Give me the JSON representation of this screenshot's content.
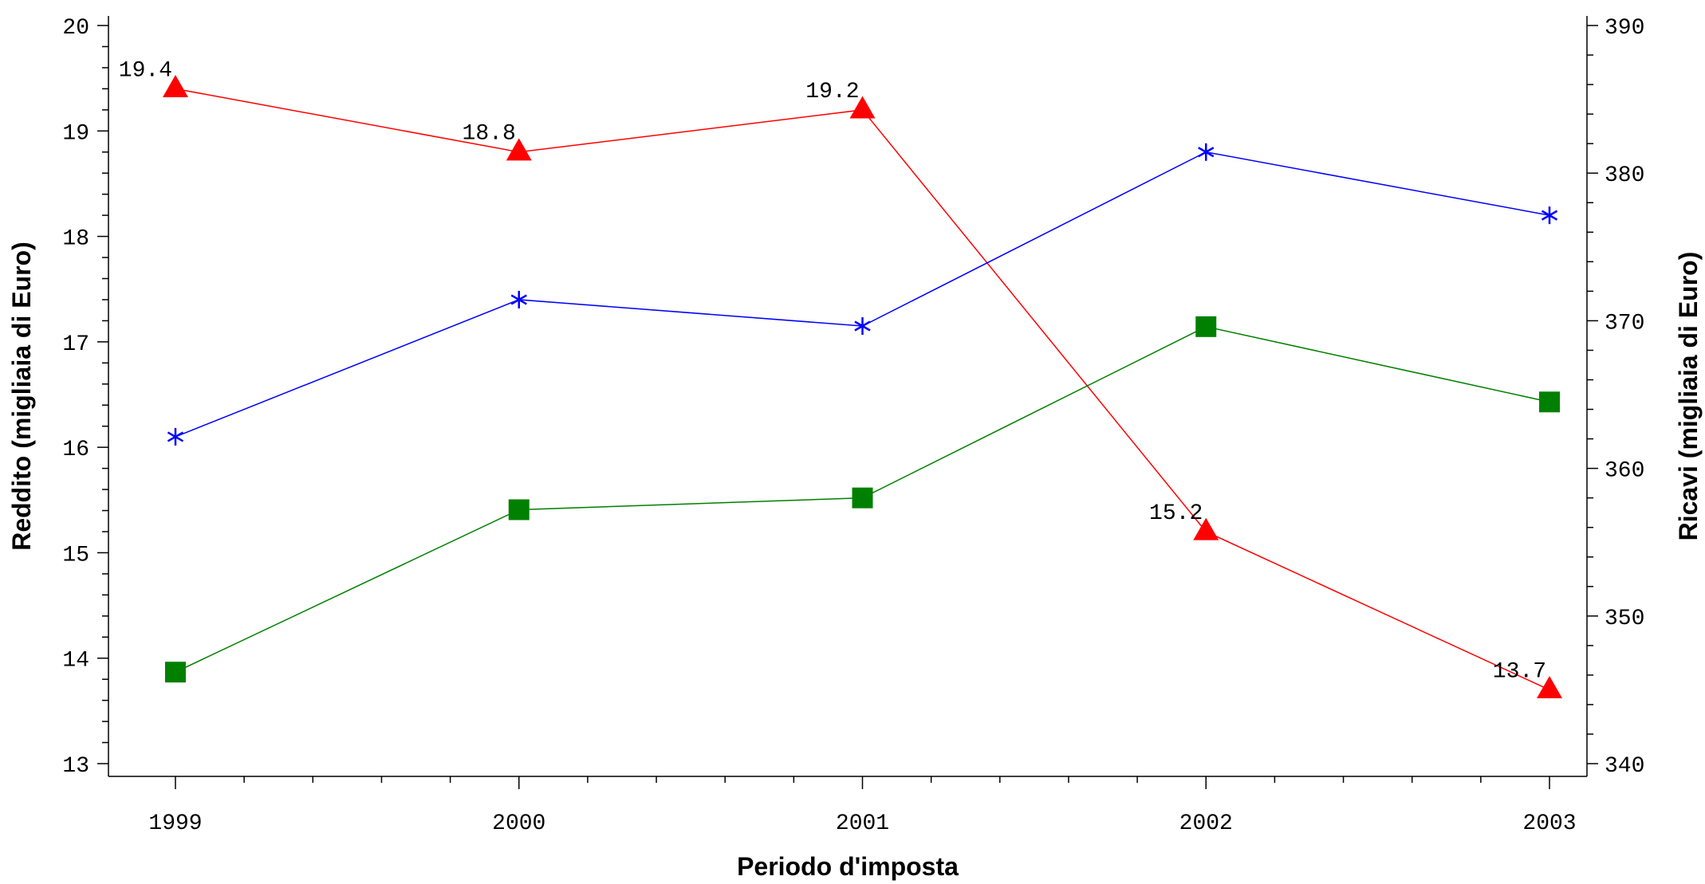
{
  "chart_data": {
    "type": "line",
    "x": [
      1999,
      2000,
      2001,
      2002,
      2003
    ],
    "x_tick_labels": [
      "1999",
      "2000",
      "2001",
      "2002",
      "2003"
    ],
    "xlabel": "Periodo d'imposta",
    "ylabel": "Reddito (migliaia di Euro)",
    "y2label": "Ricavi (migliaia di Euro)",
    "ylim": [
      13,
      20
    ],
    "y2lim": [
      340,
      390
    ],
    "y_ticks": [
      13,
      14,
      15,
      16,
      17,
      18,
      19,
      20
    ],
    "y2_ticks": [
      340,
      350,
      360,
      370,
      380,
      390
    ],
    "grid": false,
    "series": [
      {
        "axis": "left",
        "color": "#ff0000",
        "marker": "triangle",
        "values": [
          19.4,
          18.8,
          19.2,
          15.2,
          13.7
        ],
        "labels": [
          "19.4",
          "18.8",
          "19.2",
          "15.2",
          "13.7"
        ]
      },
      {
        "axis": "left",
        "color": "#0000ff",
        "marker": "asterisk",
        "values": [
          16.1,
          17.4,
          17.15,
          18.8,
          18.2
        ]
      },
      {
        "axis": "right",
        "color": "#008000",
        "marker": "square",
        "values": [
          346.2,
          357.2,
          358.0,
          369.6,
          364.5
        ]
      }
    ]
  }
}
